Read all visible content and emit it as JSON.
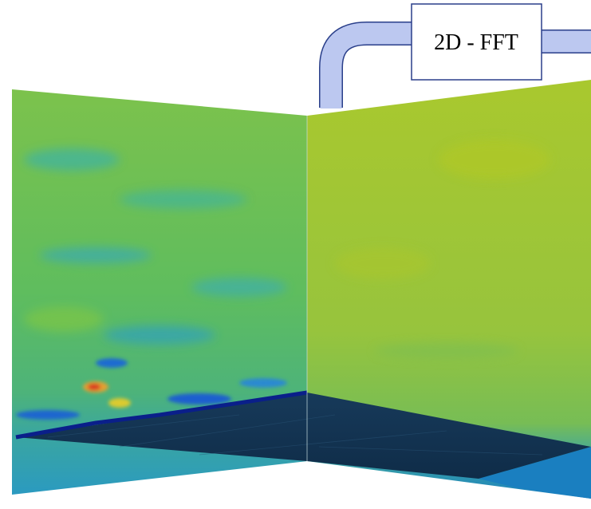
{
  "label": "2D - FFT"
}
